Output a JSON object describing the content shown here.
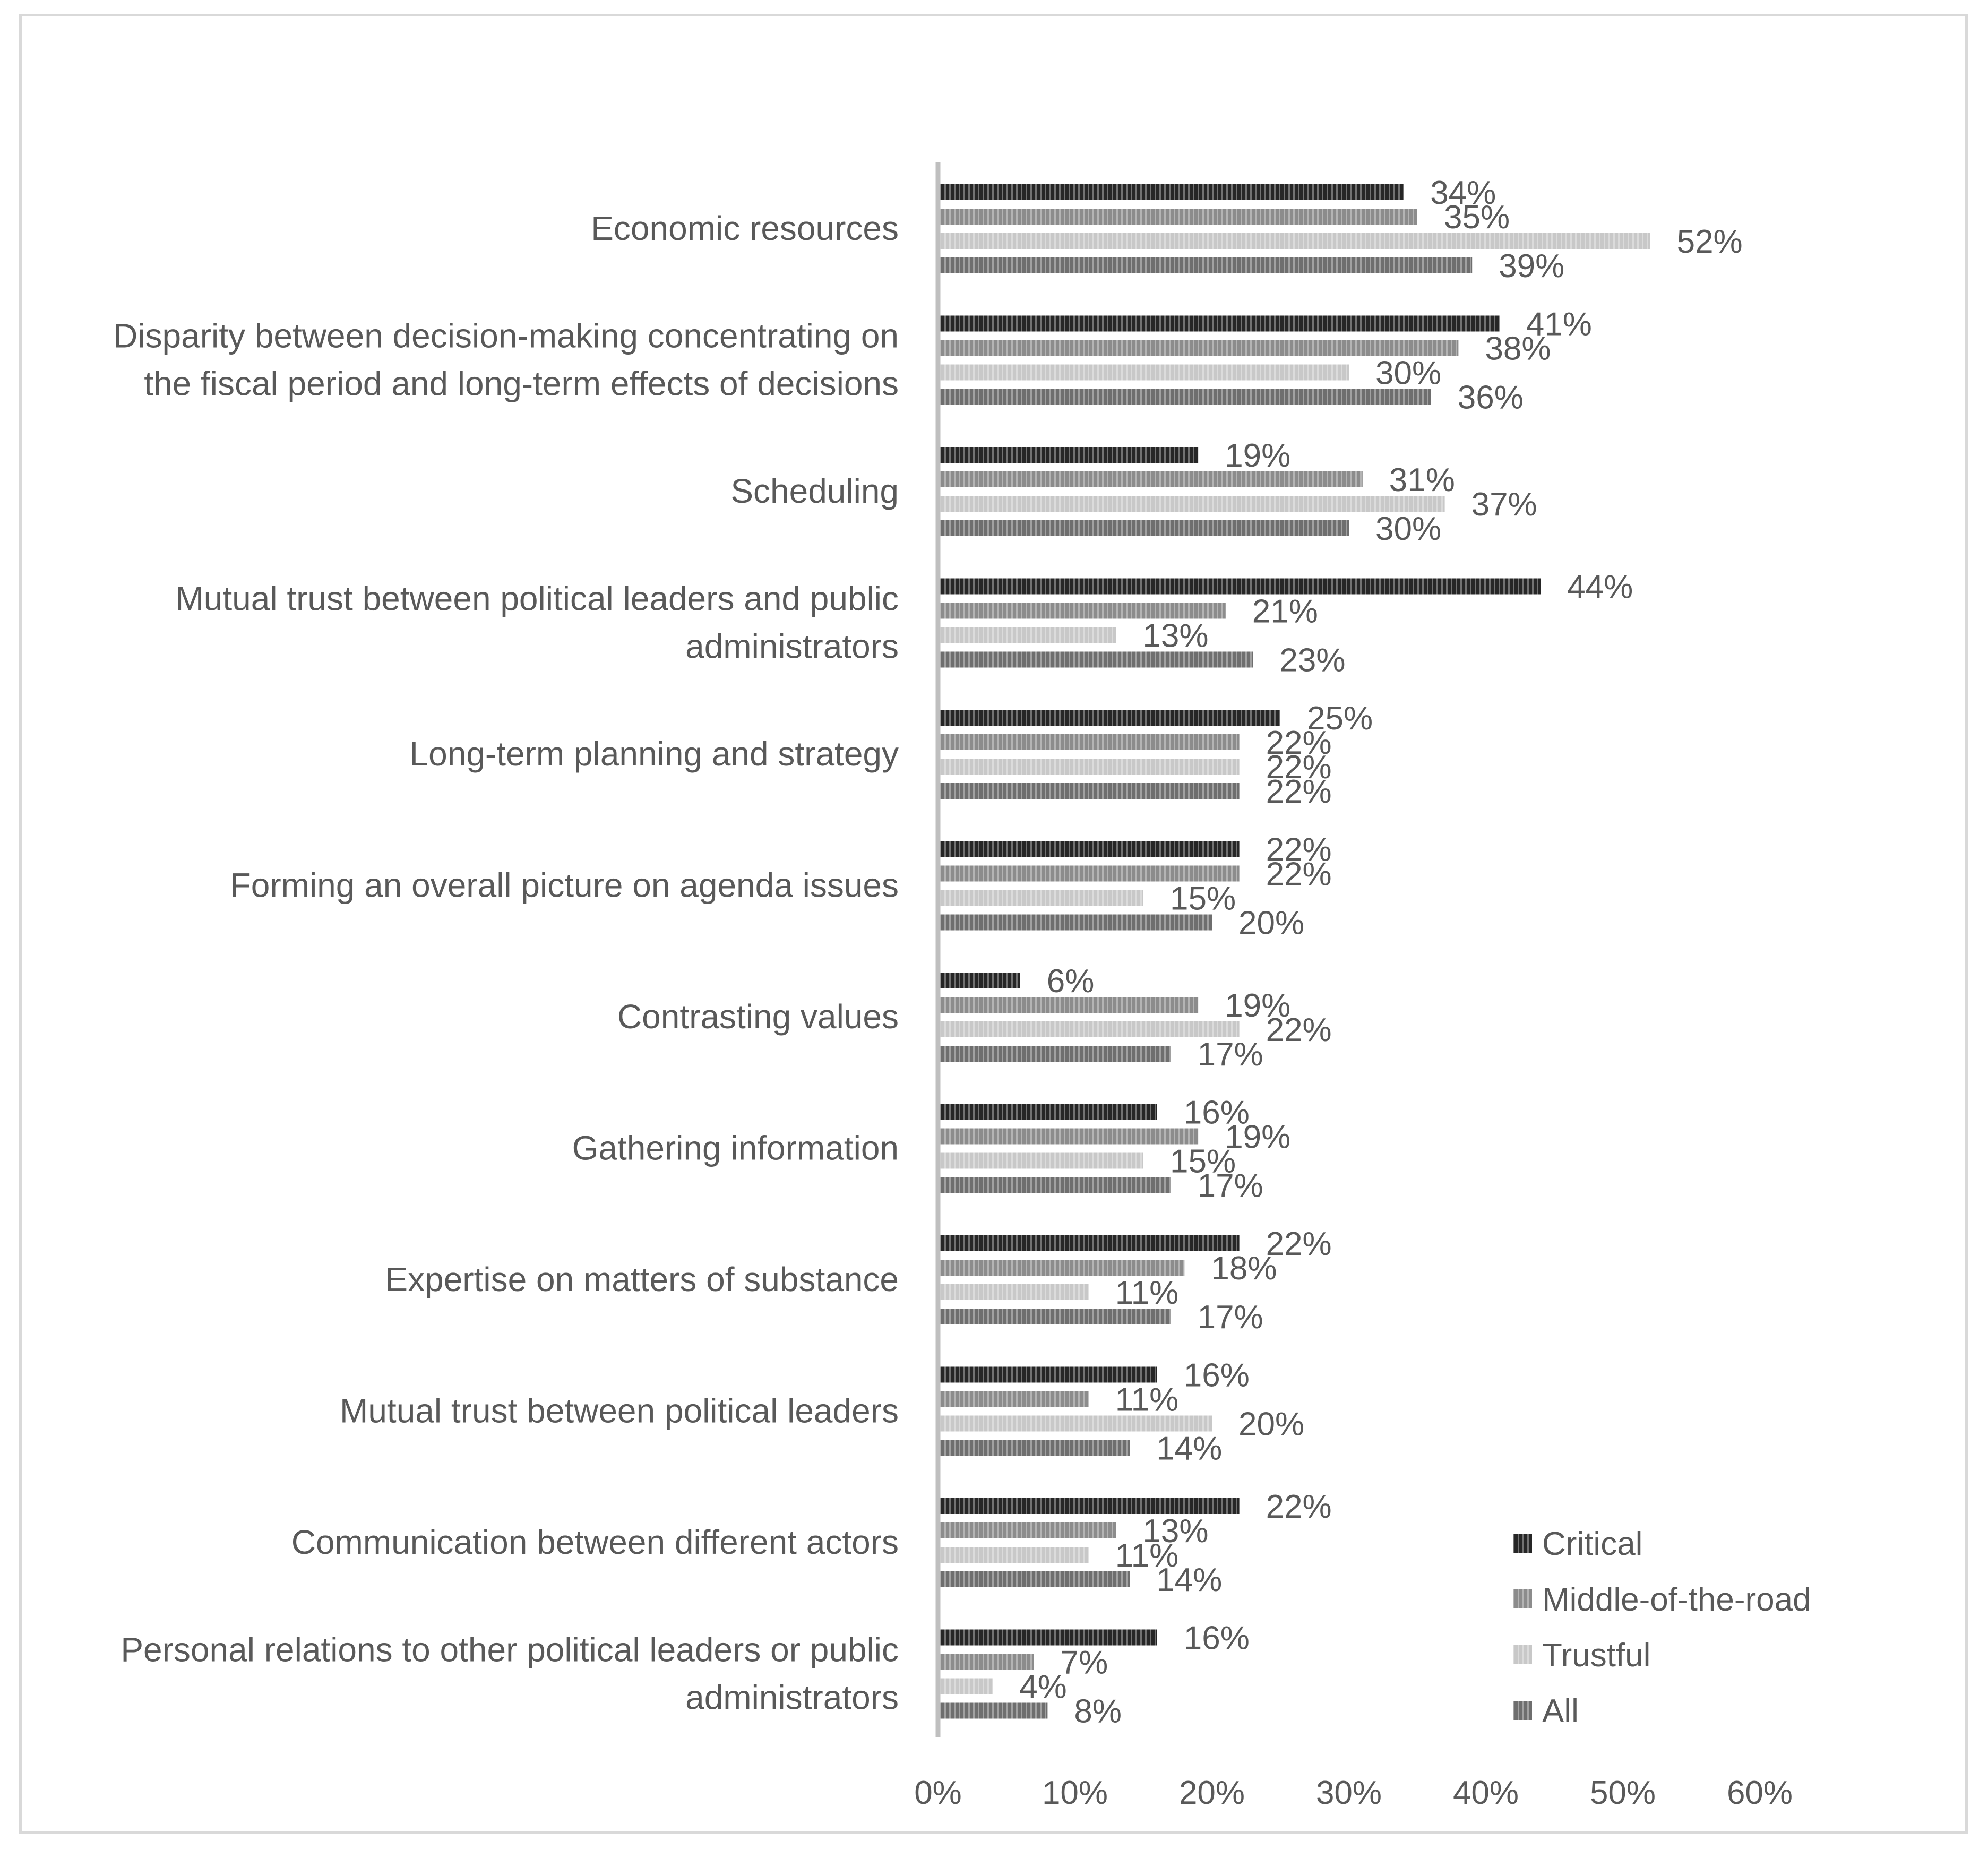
{
  "chart_data": {
    "type": "bar",
    "orientation": "horizontal",
    "categories": [
      "Economic resources",
      "Disparity between decision-making concentrating on the fiscal period and long-term effects of decisions",
      "Scheduling",
      "Mutual trust between political leaders and public administrators",
      "Long-term planning and strategy",
      "Forming an overall picture on agenda issues",
      "Contrasting values",
      "Gathering information",
      "Expertise on matters of substance",
      "Mutual trust between political leaders",
      "Communication between different actors",
      "Personal relations to other political leaders or public administrators"
    ],
    "category_lines": [
      [
        "Economic resources"
      ],
      [
        "Disparity between decision-making concentrating on",
        "the fiscal period and long-term effects of decisions"
      ],
      [
        "Scheduling"
      ],
      [
        "Mutual trust between political leaders and public",
        "administrators"
      ],
      [
        "Long-term planning and strategy"
      ],
      [
        "Forming an overall picture on agenda issues"
      ],
      [
        "Contrasting values"
      ],
      [
        "Gathering information"
      ],
      [
        "Expertise on matters of substance"
      ],
      [
        "Mutual trust between political leaders"
      ],
      [
        "Communication between different actors"
      ],
      [
        "Personal relations to other political leaders or public",
        "administrators"
      ]
    ],
    "series": [
      {
        "name": "Critical",
        "color": "#262626",
        "values": [
          34,
          41,
          19,
          44,
          25,
          22,
          6,
          16,
          22,
          16,
          22,
          16
        ]
      },
      {
        "name": "Middle-of-the-road",
        "color": "#8c8c8c",
        "values": [
          35,
          38,
          31,
          21,
          22,
          22,
          19,
          19,
          18,
          11,
          13,
          7
        ]
      },
      {
        "name": "Trustful",
        "color": "#c8c8c8",
        "values": [
          52,
          30,
          37,
          13,
          22,
          15,
          22,
          15,
          11,
          20,
          11,
          4
        ]
      },
      {
        "name": "All",
        "color": "#6e6e6e",
        "values": [
          39,
          36,
          30,
          23,
          22,
          20,
          17,
          17,
          17,
          14,
          14,
          8
        ]
      }
    ],
    "value_suffix": "%",
    "xlim": [
      0,
      60
    ],
    "xticks": [
      "0%",
      "10%",
      "20%",
      "30%",
      "40%",
      "50%",
      "60%"
    ],
    "legend_position": "bottom-right",
    "grid": false,
    "title": "",
    "xlabel": "",
    "ylabel": ""
  }
}
